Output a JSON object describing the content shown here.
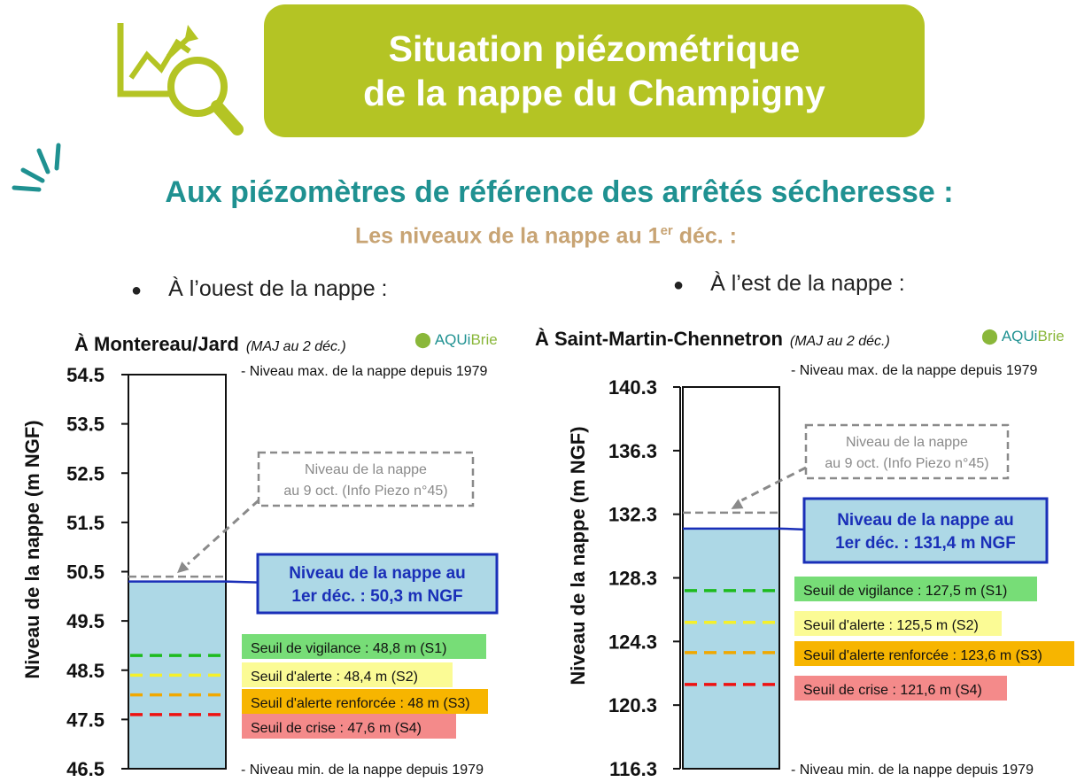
{
  "header": {
    "title_line1": "Situation piézométrique",
    "title_line2": "de la nappe du Champigny",
    "title_bg": "#b4c424"
  },
  "heading": "Aux piézomètres de référence des arrêtés sécheresse :",
  "subheading": {
    "text": "Les niveaux de la nappe au 1",
    "sup": "er",
    "tail": " déc. :"
  },
  "bullets": {
    "west": "À l’ouest de la nappe :",
    "east": "À l’est de la nappe :"
  },
  "logo_text": {
    "a": "AQUi",
    "b": "Brie"
  },
  "chart_data": [
    {
      "type": "bar",
      "title": "À Montereau/Jard",
      "update_note": "(MAJ au 2 déc.)",
      "ylabel": "Niveau de la nappe (m NGF)",
      "ylim": [
        46.5,
        54.5
      ],
      "yticks": [
        "54.5",
        "53.5",
        "52.5",
        "51.5",
        "50.5",
        "49.5",
        "48.5",
        "47.5",
        "46.5"
      ],
      "max_label": "- Niveau max. de la nappe depuis 1979",
      "min_label": "- Niveau min. de la nappe depuis 1979",
      "current": {
        "value": 50.3,
        "label1": "Niveau de la nappe au",
        "label2": "1er déc. : 50,3 m NGF"
      },
      "previous": {
        "value": 50.4,
        "label1": "Niveau de la nappe",
        "label2": "au 9 oct. (Info Piezo n°45)"
      },
      "thresholds": [
        {
          "value": 48.8,
          "label": "Seuil de vigilance : 48,8 m (S1)",
          "color": "#1dbb1d",
          "bg": "#77dd77"
        },
        {
          "value": 48.4,
          "label": "Seuil d'alerte : 48,4 m (S2)",
          "color": "#f5f02a",
          "bg": "#fbfb95"
        },
        {
          "value": 48.0,
          "label": "Seuil d'alerte renforcée : 48 m (S3)",
          "color": "#f0a800",
          "bg": "#f7b500"
        },
        {
          "value": 47.6,
          "label": "Seuil de crise : 47,6 m (S4)",
          "color": "#ee1111",
          "bg": "#f48a8a"
        }
      ]
    },
    {
      "type": "bar",
      "title": "À Saint-Martin-Chennetron",
      "update_note": "(MAJ au 2 déc.)",
      "ylabel": "Niveau de la nappe (m NGF)",
      "ylim": [
        116.3,
        140.3
      ],
      "yticks": [
        "140.3",
        "136.3",
        "132.3",
        "128.3",
        "124.3",
        "120.3",
        "116.3"
      ],
      "max_label": "- Niveau max. de la nappe depuis 1979",
      "min_label": "- Niveau min. de la nappe depuis 1979",
      "current": {
        "value": 131.4,
        "label1": "Niveau de la nappe au",
        "label2": "1er déc. : 131,4 m NGF"
      },
      "previous": {
        "value": 132.4,
        "label1": "Niveau de la nappe",
        "label2": "au 9 oct. (Info Piezo n°45)"
      },
      "thresholds": [
        {
          "value": 127.5,
          "label": "Seuil de vigilance : 127,5 m (S1)",
          "color": "#1dbb1d",
          "bg": "#77dd77"
        },
        {
          "value": 125.5,
          "label": "Seuil d'alerte : 125,5 m (S2)",
          "color": "#f5f02a",
          "bg": "#fbfb95"
        },
        {
          "value": 123.6,
          "label": "Seuil d'alerte renforcée : 123,6 m (S3)",
          "color": "#f0a800",
          "bg": "#f7b500"
        },
        {
          "value": 121.6,
          "label": "Seuil de crise : 121,6 m (S4)",
          "color": "#ee1111",
          "bg": "#f48a8a"
        }
      ]
    }
  ]
}
